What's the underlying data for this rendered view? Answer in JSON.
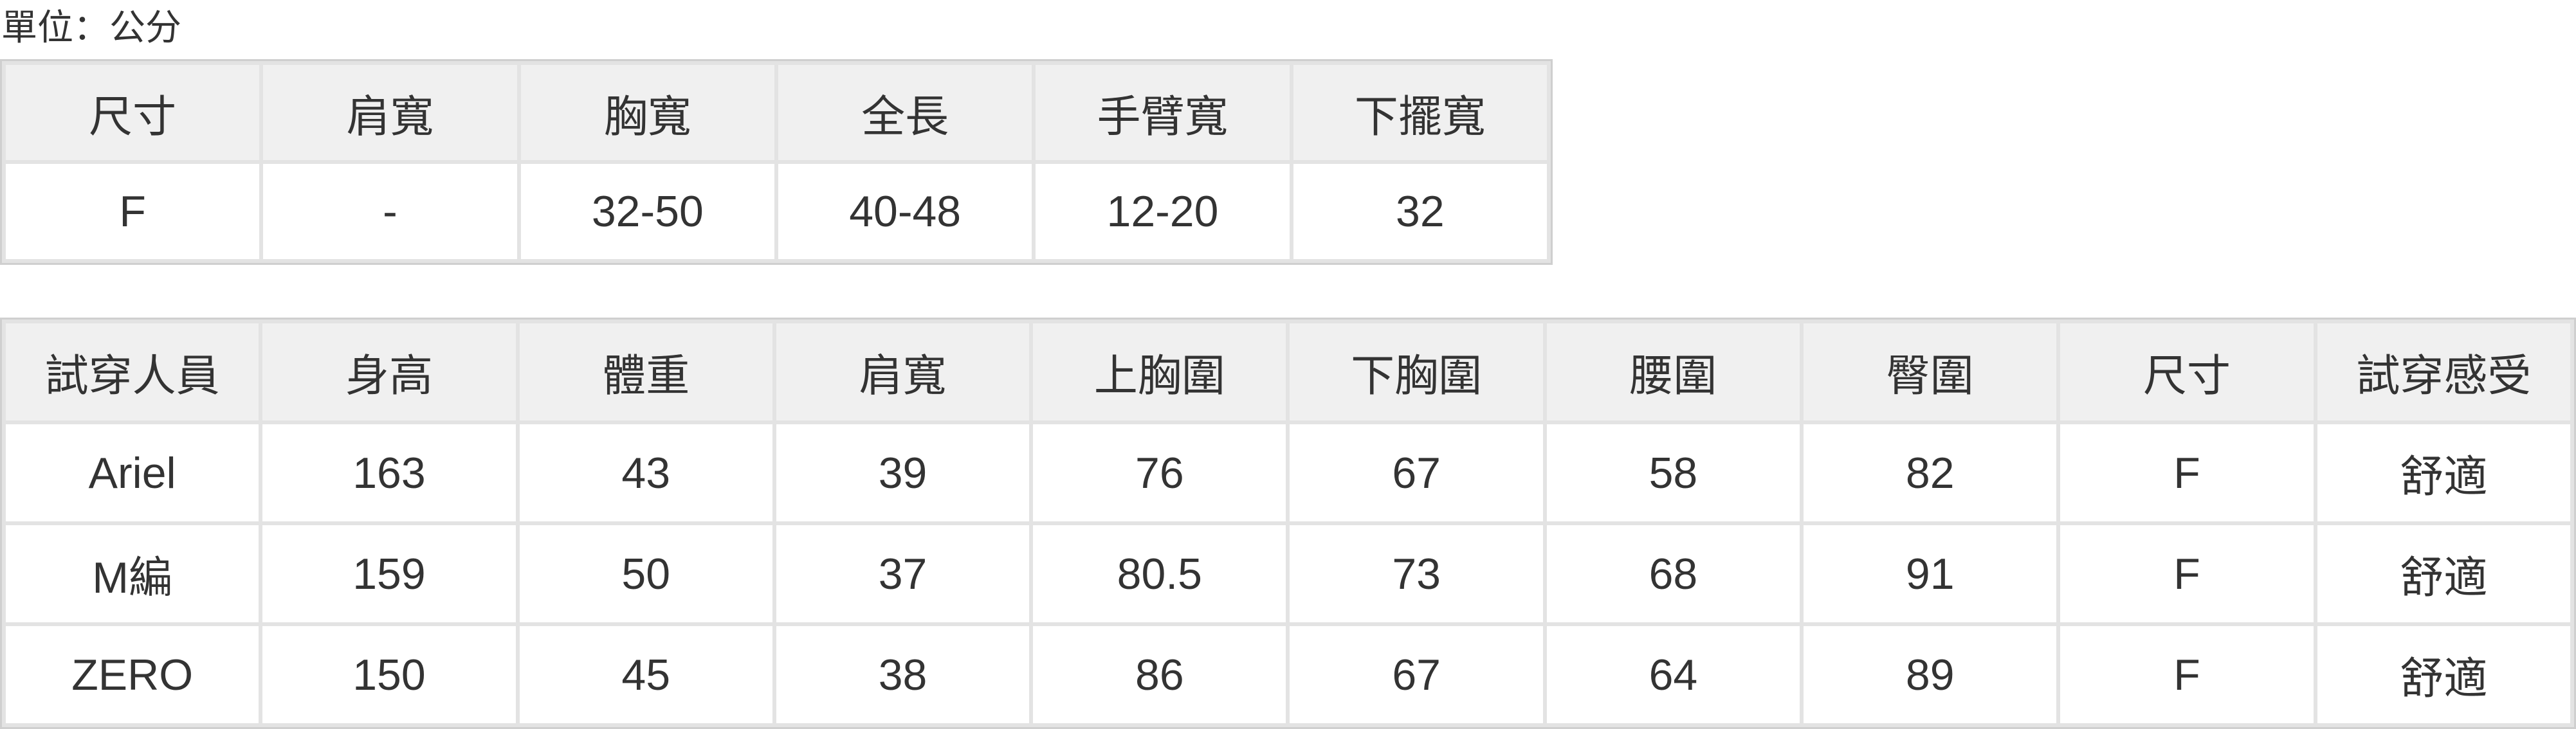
{
  "unit_label": "單位：公分",
  "size_table": {
    "headers": [
      "尺寸",
      "肩寬",
      "胸寬",
      "全長",
      "手臂寬",
      "下擺寬"
    ],
    "rows": [
      [
        "F",
        "-",
        "32-50",
        "40-48",
        "12-20",
        "32"
      ]
    ]
  },
  "fitting_table": {
    "headers": [
      "試穿人員",
      "身高",
      "體重",
      "肩寬",
      "上胸圍",
      "下胸圍",
      "腰圍",
      "臀圍",
      "尺寸",
      "試穿感受"
    ],
    "rows": [
      [
        "Ariel",
        "163",
        "43",
        "39",
        "76",
        "67",
        "58",
        "82",
        "F",
        "舒適"
      ],
      [
        "M編",
        "159",
        "50",
        "37",
        "80.5",
        "73",
        "68",
        "91",
        "F",
        "舒適"
      ],
      [
        "ZERO",
        "150",
        "45",
        "38",
        "86",
        "67",
        "64",
        "89",
        "F",
        "舒適"
      ]
    ]
  },
  "colors": {
    "header_bg": "#f0f0f0",
    "border": "#e3e3e3",
    "text": "#333333"
  }
}
